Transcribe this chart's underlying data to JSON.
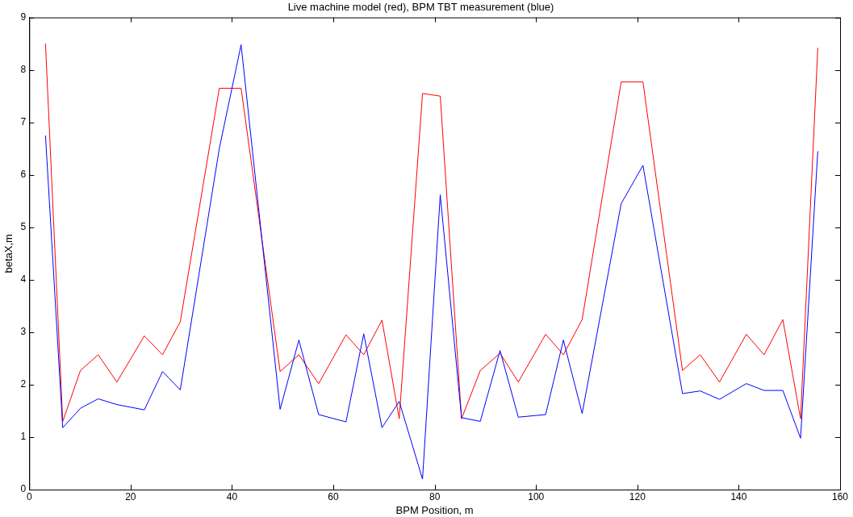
{
  "chart_data": {
    "type": "line",
    "title": "Live machine model (red), BPM TBT measurement (blue)",
    "xlabel": "BPM Position, m",
    "ylabel": "betaX,m",
    "x": [
      3.2,
      6.6,
      10.1,
      13.6,
      17.3,
      22.7,
      26.3,
      29.8,
      37.5,
      41.8,
      49.5,
      53.2,
      57.1,
      62.5,
      66,
      69.6,
      73,
      77.6,
      81.1,
      85.3,
      89,
      92.9,
      96.5,
      101.9,
      105.4,
      109.1,
      116.8,
      121.1,
      128.9,
      132.4,
      136.2,
      141.5,
      145,
      148.7,
      152.2,
      155.6
    ],
    "series": [
      {
        "color": "#ff0000",
        "values": [
          8.5,
          1.3,
          2.27,
          2.57,
          2.05,
          2.93,
          2.57,
          3.2,
          7.65,
          7.65,
          2.25,
          2.57,
          2.02,
          2.95,
          2.57,
          3.23,
          1.35,
          7.55,
          7.5,
          1.35,
          2.27,
          2.6,
          2.05,
          2.96,
          2.57,
          3.24,
          7.77,
          7.77,
          2.27,
          2.57,
          2.05,
          2.96,
          2.57,
          3.24,
          1.35,
          8.42
        ]
      },
      {
        "color": "#0000ff",
        "values": [
          6.75,
          1.18,
          1.55,
          1.73,
          1.62,
          1.52,
          2.25,
          1.9,
          6.5,
          8.48,
          1.53,
          2.85,
          1.43,
          1.29,
          2.97,
          1.18,
          1.68,
          0.2,
          5.62,
          1.37,
          1.3,
          2.65,
          1.38,
          1.43,
          2.85,
          1.45,
          5.45,
          6.18,
          1.83,
          1.88,
          1.72,
          2.02,
          1.89,
          1.89,
          0.98,
          6.45
        ]
      }
    ],
    "xlim": [
      0,
      160
    ],
    "xticks": [
      0,
      20,
      40,
      60,
      80,
      100,
      120,
      140,
      160
    ],
    "ylim": [
      0,
      9
    ],
    "yticks": [
      0,
      1,
      2,
      3,
      4,
      5,
      6,
      7,
      8,
      9
    ],
    "grid": false,
    "legend": false,
    "marker": "none",
    "line_style": "solid"
  }
}
